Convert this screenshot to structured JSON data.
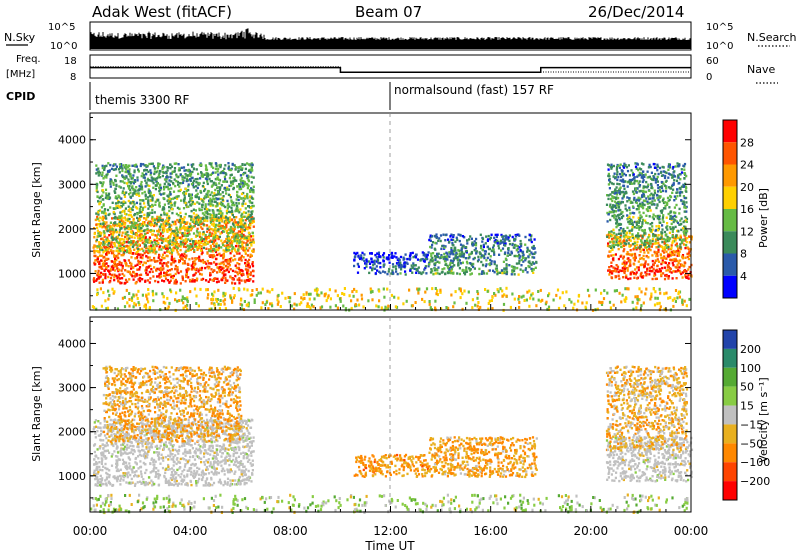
{
  "header": {
    "station": "Adak West (fitACF)",
    "beam": "Beam 07",
    "date": "26/Dec/2014"
  },
  "noise_panel": {
    "left_label": "N.Sky",
    "right_label": "N.Search",
    "left_ticks": [
      "10^5",
      "10^0"
    ],
    "right_ticks": [
      "10^5",
      "10^0"
    ]
  },
  "freq_panel": {
    "left_label_1": "Freq.",
    "left_label_2": "[MHz]",
    "right_label": "Nave",
    "left_ticks": [
      "18",
      "8"
    ],
    "right_ticks": [
      "60",
      "0"
    ],
    "freq_high_mhz": 12.5,
    "freq_low_mhz": 10.5,
    "freq_low_start_hour": 10,
    "freq_low_end_hour": 18
  },
  "cpid": {
    "label": "CPID",
    "segments": [
      {
        "name": "themis 3300 RF",
        "start_hour": 0
      },
      {
        "name": "normalsound (fast) 157 RF",
        "start_hour": 12
      }
    ]
  },
  "power_panel": {
    "ylabel": "Slant Range [km]",
    "yticks": [
      "1000",
      "2000",
      "3000",
      "4000"
    ],
    "colorbar_label": "Power [dB]",
    "colorbar_ticks": [
      "28",
      "24",
      "20",
      "16",
      "12",
      "8",
      "4"
    ],
    "colors": [
      "#ff0000",
      "#ff5500",
      "#ff9900",
      "#ffd000",
      "#66bb44",
      "#3a8a5a",
      "#2a5aaa",
      "#0000ff"
    ]
  },
  "velocity_panel": {
    "ylabel": "Slant Range [km]",
    "yticks": [
      "1000",
      "2000",
      "3000",
      "4000"
    ],
    "colorbar_label": "Velocity [m s⁻¹]",
    "colorbar_ticks": [
      "200",
      "100",
      "50",
      "15",
      "−15",
      "−50",
      "−100",
      "−200"
    ],
    "colors": [
      "#2244aa",
      "#2a8a6a",
      "#55aa33",
      "#88cc44",
      "#c0c0c0",
      "#e8b020",
      "#ff8800",
      "#ff4400",
      "#ff0000"
    ],
    "ground_scatter_color": "#c0c0c0"
  },
  "x_axis": {
    "label": "Time UT",
    "ticks": [
      "00:00",
      "04:00",
      "08:00",
      "12:00",
      "16:00",
      "20:00",
      "00:00"
    ]
  },
  "chart_data": {
    "type": "heatmap",
    "title": "Adak West (fitACF)",
    "x_range_hours": [
      0,
      24
    ],
    "y_range_km": [
      180,
      4600
    ],
    "xlabel": "Time UT",
    "ylabel": "Slant Range [km]",
    "power_scatter_regions": [
      {
        "t_start": 0.1,
        "t_end": 6.5,
        "range_low_km": 800,
        "range_high_km": 2300,
        "power_db": 26
      },
      {
        "t_start": 0.2,
        "t_end": 6.5,
        "range_low_km": 1500,
        "range_high_km": 3500,
        "power_db": 14
      },
      {
        "t_start": 10.5,
        "t_end": 13.5,
        "range_low_km": 1000,
        "range_high_km": 1500,
        "power_db": 6
      },
      {
        "t_start": 13.5,
        "t_end": 17.8,
        "range_low_km": 1000,
        "range_high_km": 1900,
        "power_db": 10
      },
      {
        "t_start": 20.6,
        "t_end": 24.0,
        "range_low_km": 900,
        "range_high_km": 1900,
        "power_db": 26
      },
      {
        "t_start": 20.6,
        "t_end": 23.8,
        "range_low_km": 1600,
        "range_high_km": 3500,
        "power_db": 12
      },
      {
        "t_start": 0.0,
        "t_end": 24.0,
        "range_low_km": 200,
        "range_high_km": 700,
        "power_db": 16
      }
    ],
    "velocity_scatter_regions": [
      {
        "t_start": 0.1,
        "t_end": 6.5,
        "range_low_km": 800,
        "range_high_km": 2300,
        "velocity_ms": 0,
        "ground_scatter": true
      },
      {
        "t_start": 0.5,
        "t_end": 6.0,
        "range_low_km": 1800,
        "range_high_km": 3500,
        "velocity_ms": -40
      },
      {
        "t_start": 10.5,
        "t_end": 13.5,
        "range_low_km": 1000,
        "range_high_km": 1500,
        "velocity_ms": -60
      },
      {
        "t_start": 13.5,
        "t_end": 17.8,
        "range_low_km": 1000,
        "range_high_km": 1900,
        "velocity_ms": -50
      },
      {
        "t_start": 20.6,
        "t_end": 24.0,
        "range_low_km": 900,
        "range_high_km": 1900,
        "velocity_ms": 0,
        "ground_scatter": true
      },
      {
        "t_start": 20.6,
        "t_end": 23.8,
        "range_low_km": 1600,
        "range_high_km": 3500,
        "velocity_ms": -30
      },
      {
        "t_start": 0.0,
        "t_end": 24.0,
        "range_low_km": 200,
        "range_high_km": 600,
        "velocity_ms": 20
      }
    ]
  }
}
